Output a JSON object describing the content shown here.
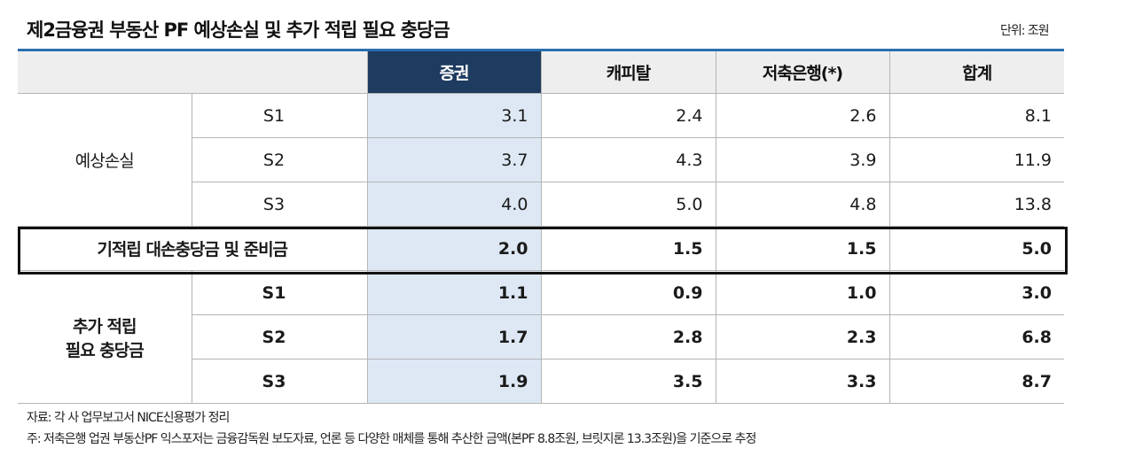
{
  "title": "제2금융권 부동산 PF 예상손실 및 추가 적립 필요 충당금",
  "unit": "단위: 조원",
  "columns": [
    "증권",
    "캐피탈",
    "저축은행(*)",
    "합계"
  ],
  "rows": [
    {
      "group": "예상손실",
      "sub": "S1",
      "values": [
        "3.1",
        "2.4",
        "2.6",
        "8.1"
      ]
    },
    {
      "group": "",
      "sub": "S2",
      "values": [
        "3.7",
        "4.3",
        "3.9",
        "11.9"
      ]
    },
    {
      "group": "",
      "sub": "S3",
      "values": [
        "4.0",
        "5.0",
        "4.8",
        "13.8"
      ]
    },
    {
      "group": "기적립 대손충당금 및 준비금",
      "sub": "",
      "values": [
        "2.0",
        "1.5",
        "1.5",
        "5.0"
      ]
    },
    {
      "group": "추가 적립 필요 충당금",
      "group_line1": "추가 적립",
      "group_line2": "필요 충당금",
      "sub": "S1",
      "values": [
        "1.1",
        "0.9",
        "1.0",
        "3.0"
      ]
    },
    {
      "group": "",
      "sub": "S2",
      "values": [
        "1.7",
        "2.8",
        "2.3",
        "6.8"
      ]
    },
    {
      "group": "",
      "sub": "S3",
      "values": [
        "1.9",
        "3.5",
        "3.3",
        "8.7"
      ]
    }
  ],
  "notes": {
    "source": "자료: 각 사 업무보고서 NICE신용평가 정리",
    "footnote": "주: 저축은행 업권 부동산PF 익스포저는 금융감독원 보도자료, 언론 등 다양한 매체를 통해 추산한 금액(본PF 8.8조원, 브릿지론 13.3조원)을 기준으로 추정"
  }
}
